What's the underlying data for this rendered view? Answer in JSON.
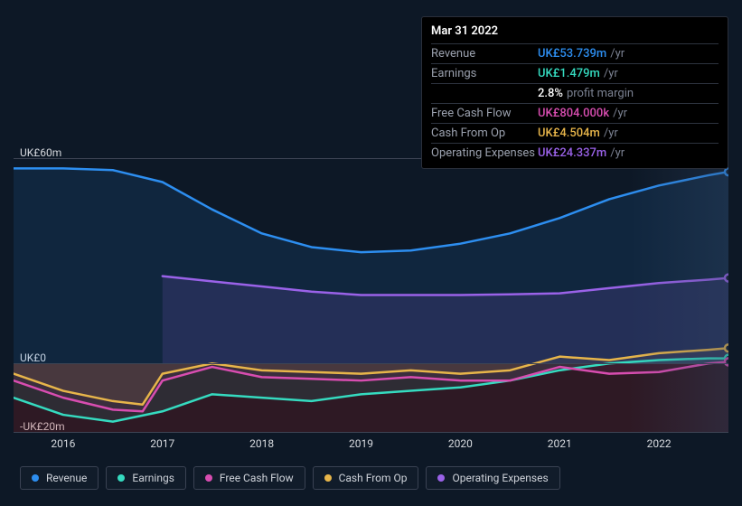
{
  "tooltip": {
    "title": "Mar 31 2022",
    "rows": [
      {
        "label": "Revenue",
        "value": "UK£53.739m",
        "unit": "/yr",
        "color": "#2d8ef0",
        "extra": ""
      },
      {
        "label": "Earnings",
        "value": "UK£1.479m",
        "unit": "/yr",
        "color": "#35dbc0",
        "extra": ""
      },
      {
        "label": "",
        "value": "2.8%",
        "unit": "",
        "color": "#ffffff",
        "extra": "profit margin"
      },
      {
        "label": "Free Cash Flow",
        "value": "UK£804.000k",
        "unit": "/yr",
        "color": "#d84db0",
        "extra": ""
      },
      {
        "label": "Cash From Op",
        "value": "UK£4.504m",
        "unit": "/yr",
        "color": "#e7b54a",
        "extra": ""
      },
      {
        "label": "Operating Expenses",
        "value": "UK£24.337m",
        "unit": "/yr",
        "color": "#9a62e8",
        "extra": ""
      }
    ]
  },
  "chart": {
    "type": "area",
    "background_color": "#0d1826",
    "grid_color": "#3d4454",
    "text_color": "#d6d9de",
    "label_fontsize": 12,
    "yaxis": {
      "min": -20,
      "max": 60,
      "ticks": [
        {
          "v": 60,
          "label": "UK£60m"
        },
        {
          "v": 0,
          "label": "UK£0"
        },
        {
          "v": -20,
          "label": "-UK£20m"
        }
      ]
    },
    "xaxis": {
      "min": 2015.5,
      "max": 2022.7,
      "ticks": [
        {
          "v": 2016,
          "label": "2016"
        },
        {
          "v": 2017,
          "label": "2017"
        },
        {
          "v": 2018,
          "label": "2018"
        },
        {
          "v": 2019,
          "label": "2019"
        },
        {
          "v": 2020,
          "label": "2020"
        },
        {
          "v": 2021,
          "label": "2021"
        },
        {
          "v": 2022,
          "label": "2022"
        }
      ]
    },
    "future_band_start": 2021.7,
    "series": [
      {
        "id": "revenue",
        "label": "Revenue",
        "color": "#2d8ef0",
        "fill": "rgba(45,142,240,0.12)",
        "line_width": 2.5,
        "data": [
          [
            2015.5,
            57
          ],
          [
            2016,
            57
          ],
          [
            2016.5,
            56.5
          ],
          [
            2017,
            53
          ],
          [
            2017.5,
            45
          ],
          [
            2018,
            38
          ],
          [
            2018.5,
            34
          ],
          [
            2019,
            32.5
          ],
          [
            2019.5,
            33
          ],
          [
            2020,
            35
          ],
          [
            2020.5,
            38
          ],
          [
            2021,
            42.5
          ],
          [
            2021.5,
            48
          ],
          [
            2022,
            52
          ],
          [
            2022.5,
            55
          ],
          [
            2022.7,
            56
          ]
        ],
        "end_marker": true
      },
      {
        "id": "earnings",
        "label": "Earnings",
        "color": "#35dbc0",
        "fill": "rgba(53,219,192,0.10)",
        "line_width": 2.5,
        "data": [
          [
            2015.5,
            -10
          ],
          [
            2016,
            -15
          ],
          [
            2016.5,
            -17
          ],
          [
            2017,
            -14
          ],
          [
            2017.5,
            -9
          ],
          [
            2018,
            -10
          ],
          [
            2018.5,
            -11
          ],
          [
            2019,
            -9
          ],
          [
            2019.5,
            -8
          ],
          [
            2020,
            -7
          ],
          [
            2020.5,
            -5
          ],
          [
            2021,
            -2
          ],
          [
            2021.5,
            0
          ],
          [
            2022,
            1
          ],
          [
            2022.5,
            1.5
          ],
          [
            2022.7,
            1.5
          ]
        ],
        "end_marker": true
      },
      {
        "id": "fcf",
        "label": "Free Cash Flow",
        "color": "#d84db0",
        "fill": "rgba(216,77,176,0.08)",
        "line_width": 2.5,
        "data": [
          [
            2015.5,
            -5
          ],
          [
            2016,
            -10
          ],
          [
            2016.5,
            -13.5
          ],
          [
            2016.8,
            -14
          ],
          [
            2017,
            -5
          ],
          [
            2017.5,
            -1
          ],
          [
            2018,
            -4
          ],
          [
            2018.5,
            -4.5
          ],
          [
            2019,
            -5
          ],
          [
            2019.5,
            -4
          ],
          [
            2020,
            -5
          ],
          [
            2020.5,
            -5
          ],
          [
            2021,
            -1
          ],
          [
            2021.5,
            -3
          ],
          [
            2022,
            -2.5
          ],
          [
            2022.5,
            0
          ],
          [
            2022.7,
            0.5
          ]
        ],
        "end_marker": true
      },
      {
        "id": "cfo",
        "label": "Cash From Op",
        "color": "#e7b54a",
        "fill": "rgba(231,181,74,0.08)",
        "line_width": 2.5,
        "data": [
          [
            2015.5,
            -3
          ],
          [
            2016,
            -8
          ],
          [
            2016.5,
            -11
          ],
          [
            2016.8,
            -12
          ],
          [
            2017,
            -3
          ],
          [
            2017.5,
            0
          ],
          [
            2018,
            -2
          ],
          [
            2018.5,
            -2.5
          ],
          [
            2019,
            -3
          ],
          [
            2019.5,
            -2
          ],
          [
            2020,
            -3
          ],
          [
            2020.5,
            -2
          ],
          [
            2021,
            2
          ],
          [
            2021.5,
            1
          ],
          [
            2022,
            3
          ],
          [
            2022.5,
            4
          ],
          [
            2022.7,
            4.5
          ]
        ],
        "end_marker": true
      },
      {
        "id": "opex",
        "label": "Operating Expenses",
        "color": "#9a62e8",
        "fill": "rgba(154,98,232,0.15)",
        "line_width": 2.5,
        "data": [
          [
            2017,
            25.5
          ],
          [
            2017.5,
            24
          ],
          [
            2018,
            22.5
          ],
          [
            2018.5,
            21
          ],
          [
            2019,
            20
          ],
          [
            2019.5,
            20
          ],
          [
            2020,
            20
          ],
          [
            2020.5,
            20.2
          ],
          [
            2021,
            20.5
          ],
          [
            2021.5,
            22
          ],
          [
            2022,
            23.5
          ],
          [
            2022.5,
            24.5
          ],
          [
            2022.7,
            25
          ]
        ],
        "end_marker": true
      }
    ],
    "negative_fill": {
      "color": "rgba(178,30,30,0.20)",
      "applies_to": [
        "earnings",
        "fcf",
        "cfo"
      ]
    }
  },
  "legend": [
    {
      "id": "revenue",
      "label": "Revenue",
      "color": "#2d8ef0"
    },
    {
      "id": "earnings",
      "label": "Earnings",
      "color": "#35dbc0"
    },
    {
      "id": "fcf",
      "label": "Free Cash Flow",
      "color": "#d84db0"
    },
    {
      "id": "cfo",
      "label": "Cash From Op",
      "color": "#e7b54a"
    },
    {
      "id": "opex",
      "label": "Operating Expenses",
      "color": "#9a62e8"
    }
  ]
}
